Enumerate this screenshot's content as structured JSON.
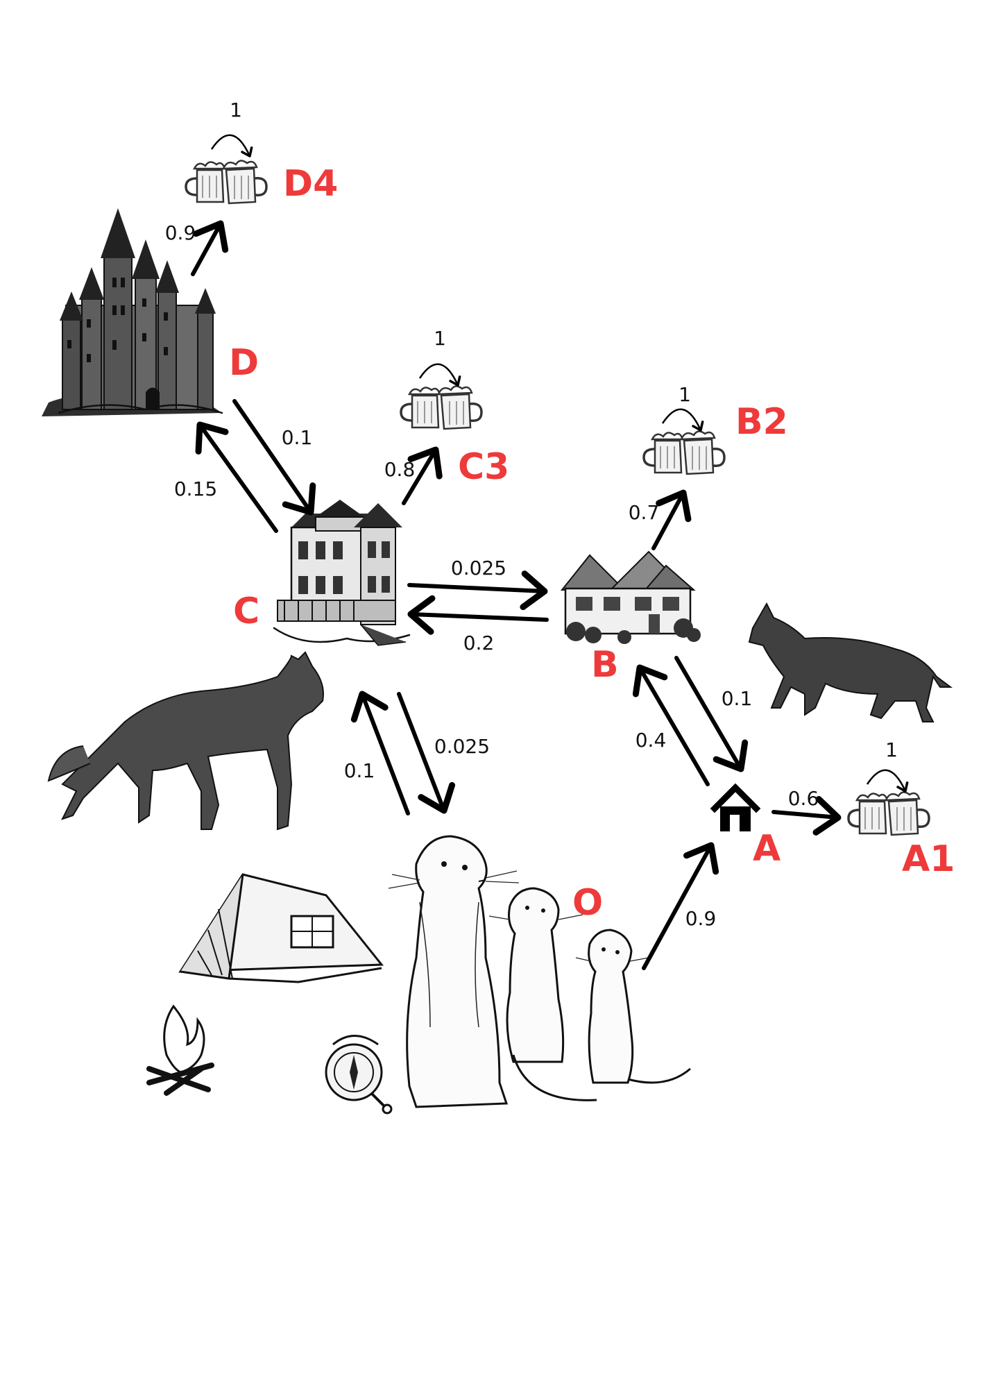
{
  "nodes": {
    "D4": {
      "label": "D4"
    },
    "D": {
      "label": "D"
    },
    "C3": {
      "label": "C3"
    },
    "B2": {
      "label": "B2"
    },
    "C": {
      "label": "C"
    },
    "B": {
      "label": "B"
    },
    "A": {
      "label": "A"
    },
    "A1": {
      "label": "A1"
    },
    "O": {
      "label": "O"
    }
  },
  "edges": {
    "D_D4": "0.9",
    "D4_loop": "1",
    "D_C": "0.1",
    "C_D": "0.15",
    "C_C3": "0.8",
    "C3_loop": "1",
    "B_B2": "0.7",
    "B2_loop": "1",
    "C_B": "0.025",
    "B_C": "0.2",
    "B_A": "0.1",
    "A_B": "0.4",
    "A_A1": "0.6",
    "A1_loop": "1",
    "C_O": "0.025",
    "O_C": "0.1",
    "O_A": "0.9"
  },
  "colors": {
    "node_label": "#ee3a3a",
    "arrow": "#000000"
  },
  "icons": {
    "D": "castle-icon",
    "C": "victorian-mansion-icon",
    "B": "cottage-icon",
    "A": "home-icon",
    "O": "meerkats-icon",
    "terminal": "beer-mugs-icon"
  }
}
